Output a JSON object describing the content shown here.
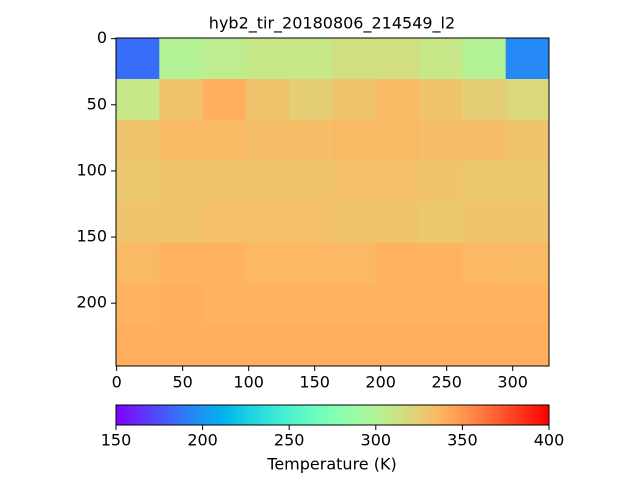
{
  "chart_data": {
    "type": "heatmap",
    "title": "hyb2_tir_20180806_214549_l2",
    "z": [
      [
        185,
        300,
        305,
        310,
        310,
        315,
        315,
        310,
        300,
        195
      ],
      [
        310,
        330,
        340,
        330,
        325,
        330,
        335,
        330,
        325,
        320
      ],
      [
        330,
        335,
        335,
        333,
        333,
        335,
        335,
        333,
        333,
        330
      ],
      [
        328,
        330,
        330,
        330,
        330,
        332,
        332,
        330,
        328,
        328
      ],
      [
        330,
        330,
        332,
        332,
        332,
        330,
        330,
        328,
        330,
        330
      ],
      [
        335,
        338,
        338,
        336,
        336,
        336,
        338,
        338,
        336,
        335
      ],
      [
        338,
        340,
        338,
        338,
        338,
        338,
        338,
        338,
        338,
        338
      ],
      [
        340,
        340,
        340,
        340,
        340,
        340,
        340,
        340,
        340,
        340
      ]
    ],
    "xlim": [
      -0.5,
      327.5
    ],
    "ylim": [
      247.5,
      -0.5
    ],
    "xticks": [
      0,
      50,
      100,
      150,
      200,
      250,
      300
    ],
    "yticks": [
      0,
      50,
      100,
      150,
      200
    ],
    "colormap": "rainbow",
    "colorbar": {
      "label": "Temperature (K)",
      "lim": [
        150,
        400
      ],
      "ticks": [
        150,
        200,
        250,
        300,
        350,
        400
      ]
    }
  }
}
